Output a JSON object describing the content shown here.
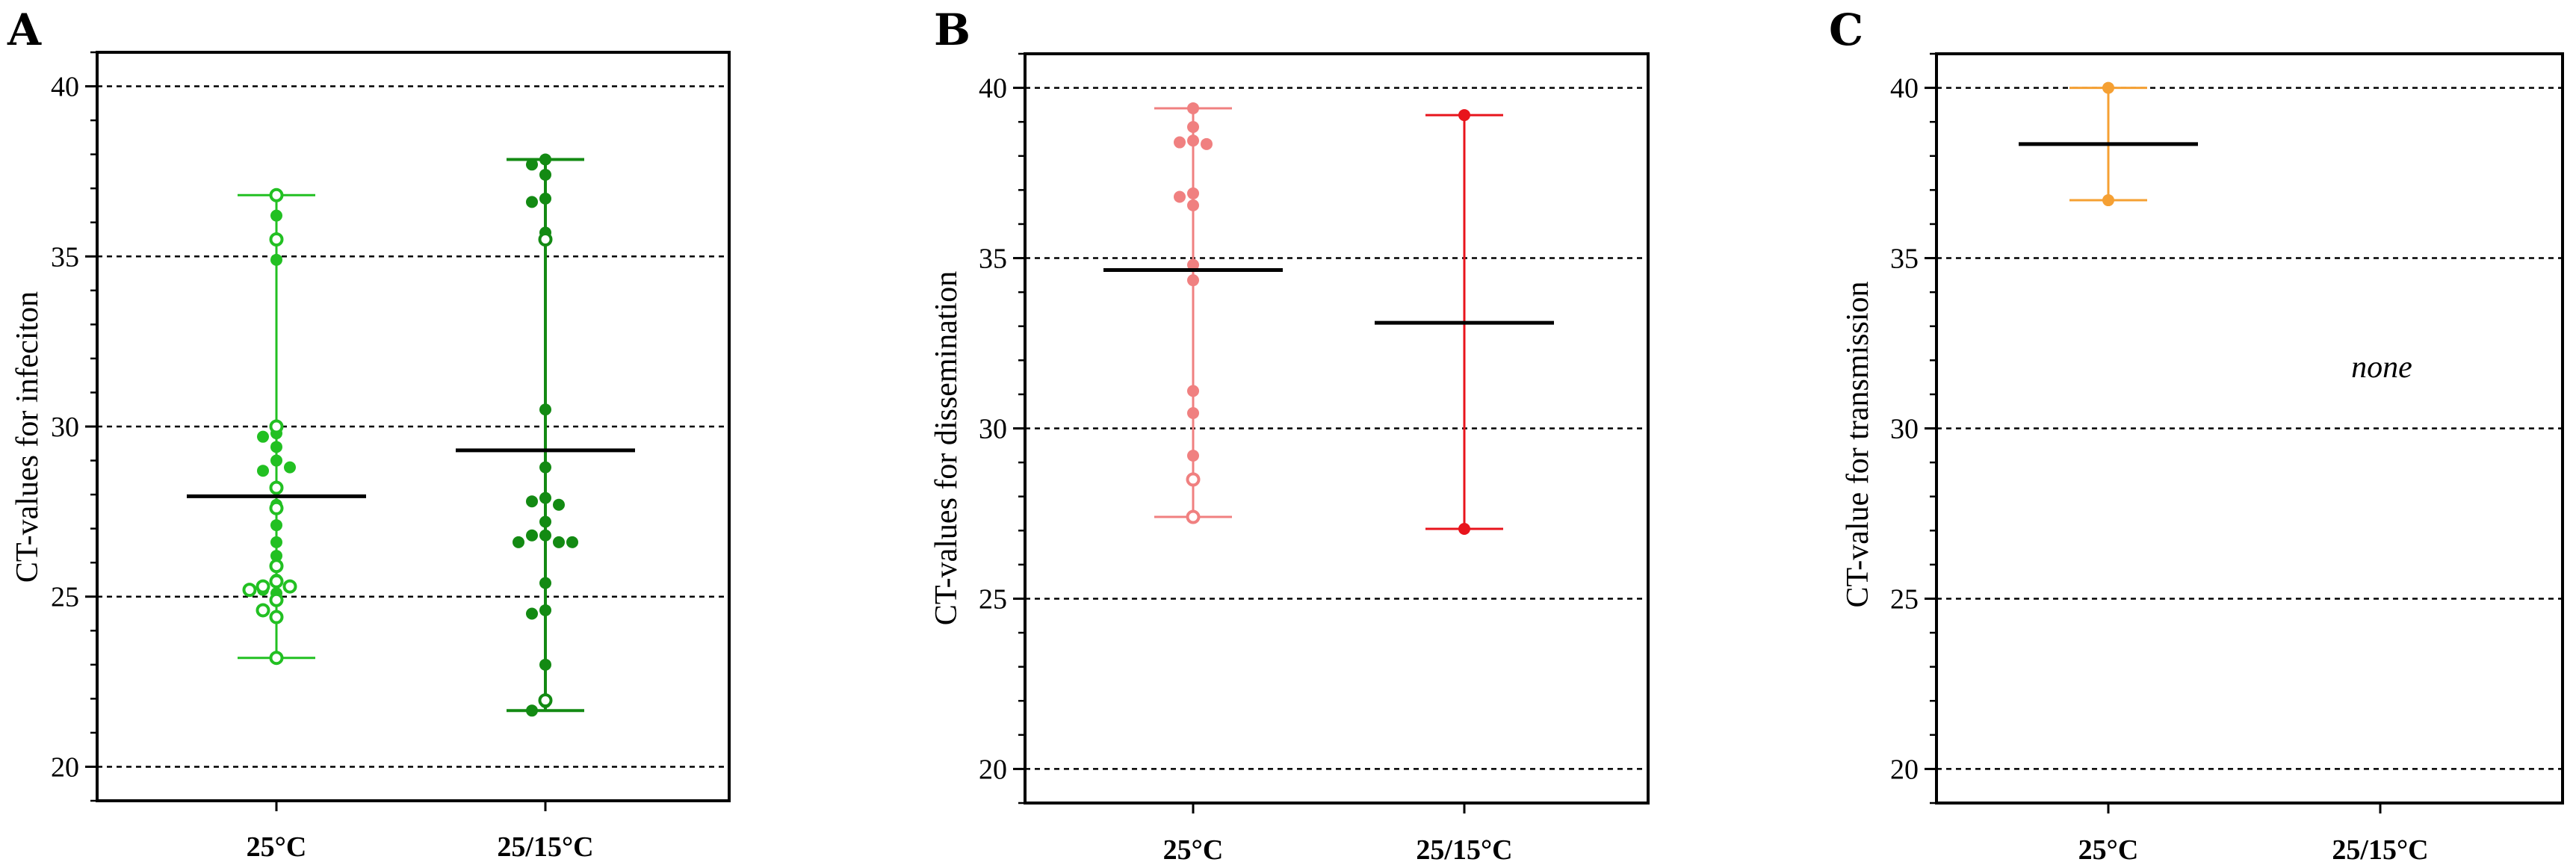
{
  "chart_data": [
    {
      "type": "scatter",
      "panel": "A",
      "ylabel": "CT-values for infeciton",
      "ylim": [
        19,
        41
      ],
      "yticks": [
        20,
        25,
        30,
        35,
        40
      ],
      "grid": "dashed at major ticks",
      "categories": [
        "25°C",
        "25/15°C"
      ],
      "series": [
        {
          "name": "25°C",
          "color": "#22c022",
          "filled": [
            36.2,
            34.9,
            29.8,
            29.7,
            29.4,
            29.0,
            28.7,
            28.8,
            27.7,
            27.1,
            26.6,
            26.2,
            25.5,
            25.2,
            25.1,
            24.4
          ],
          "open": [
            36.8,
            35.5,
            30.0,
            28.2,
            27.6,
            25.9,
            25.45,
            25.3,
            25.3,
            25.2,
            24.9,
            24.6,
            24.4,
            23.2
          ],
          "mean": 27.95,
          "min": 23.2,
          "max": 36.8
        },
        {
          "name": "25/15°C",
          "color": "#138a13",
          "filled": [
            37.85,
            37.7,
            37.4,
            36.7,
            36.6,
            35.7,
            30.5,
            28.8,
            27.9,
            27.8,
            27.7,
            27.2,
            26.8,
            26.8,
            26.6,
            26.6,
            26.6,
            25.4,
            24.6,
            24.5,
            23.0,
            21.9,
            21.65
          ],
          "open": [
            35.5,
            21.95
          ],
          "mean": 29.3,
          "min": 21.65,
          "max": 37.85
        }
      ]
    },
    {
      "type": "scatter",
      "panel": "B",
      "ylabel": "CT-values for dissemination",
      "ylim": [
        19,
        41
      ],
      "yticks": [
        20,
        25,
        30,
        35,
        40
      ],
      "grid": "dashed at major ticks",
      "categories": [
        "25°C",
        "25/15°C"
      ],
      "series": [
        {
          "name": "25°C",
          "color": "#f08080",
          "filled": [
            39.4,
            38.85,
            38.45,
            38.4,
            38.35,
            36.9,
            36.8,
            36.55,
            34.8,
            34.35,
            31.1,
            30.45,
            29.2
          ],
          "open": [
            28.5,
            27.4
          ],
          "mean": 34.65,
          "min": 27.4,
          "max": 39.4
        },
        {
          "name": "25/15°C",
          "color": "#e8141c",
          "filled": [
            39.2,
            27.05
          ],
          "open": [],
          "mean": 33.1,
          "min": 27.05,
          "max": 39.2
        }
      ]
    },
    {
      "type": "scatter",
      "panel": "C",
      "ylabel": "CT-value for transmission",
      "ylim": [
        19,
        41
      ],
      "yticks": [
        20,
        25,
        30,
        35,
        40
      ],
      "grid": "dashed at major ticks",
      "categories": [
        "25°C",
        "25/15°C"
      ],
      "annotation": "none",
      "series": [
        {
          "name": "25°C",
          "color": "#f5a033",
          "filled": [
            40.0,
            36.7
          ],
          "open": [],
          "mean": 38.35,
          "min": 36.7,
          "max": 40.0
        },
        {
          "name": "25/15°C",
          "color": "#f5a033",
          "filled": [],
          "open": []
        }
      ]
    }
  ]
}
